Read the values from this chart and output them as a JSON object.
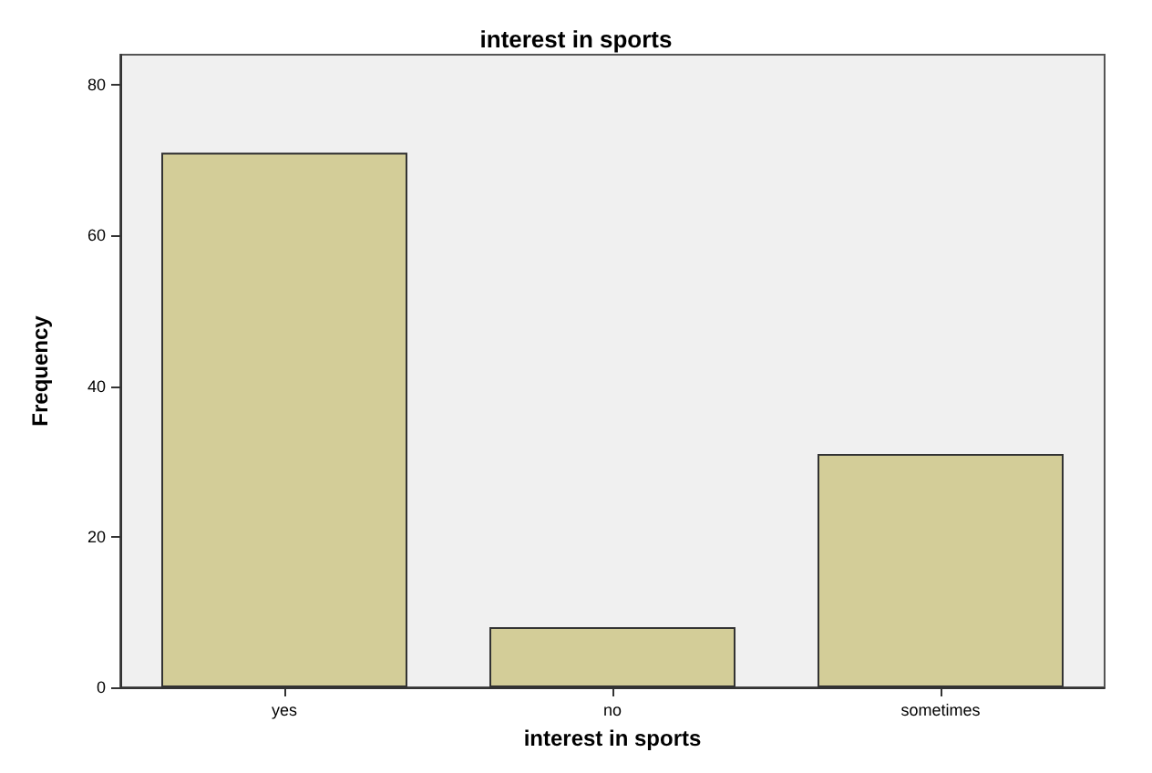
{
  "chart_data": {
    "type": "bar",
    "title": "interest in sports",
    "xlabel": "interest in sports",
    "ylabel": "Frequency",
    "categories": [
      "yes",
      "no",
      "sometimes"
    ],
    "values": [
      71,
      8,
      31
    ],
    "color": "#d3cd98",
    "ylim": [
      0,
      84
    ],
    "yticks": [
      0,
      20,
      40,
      60,
      80
    ],
    "grid": false
  }
}
